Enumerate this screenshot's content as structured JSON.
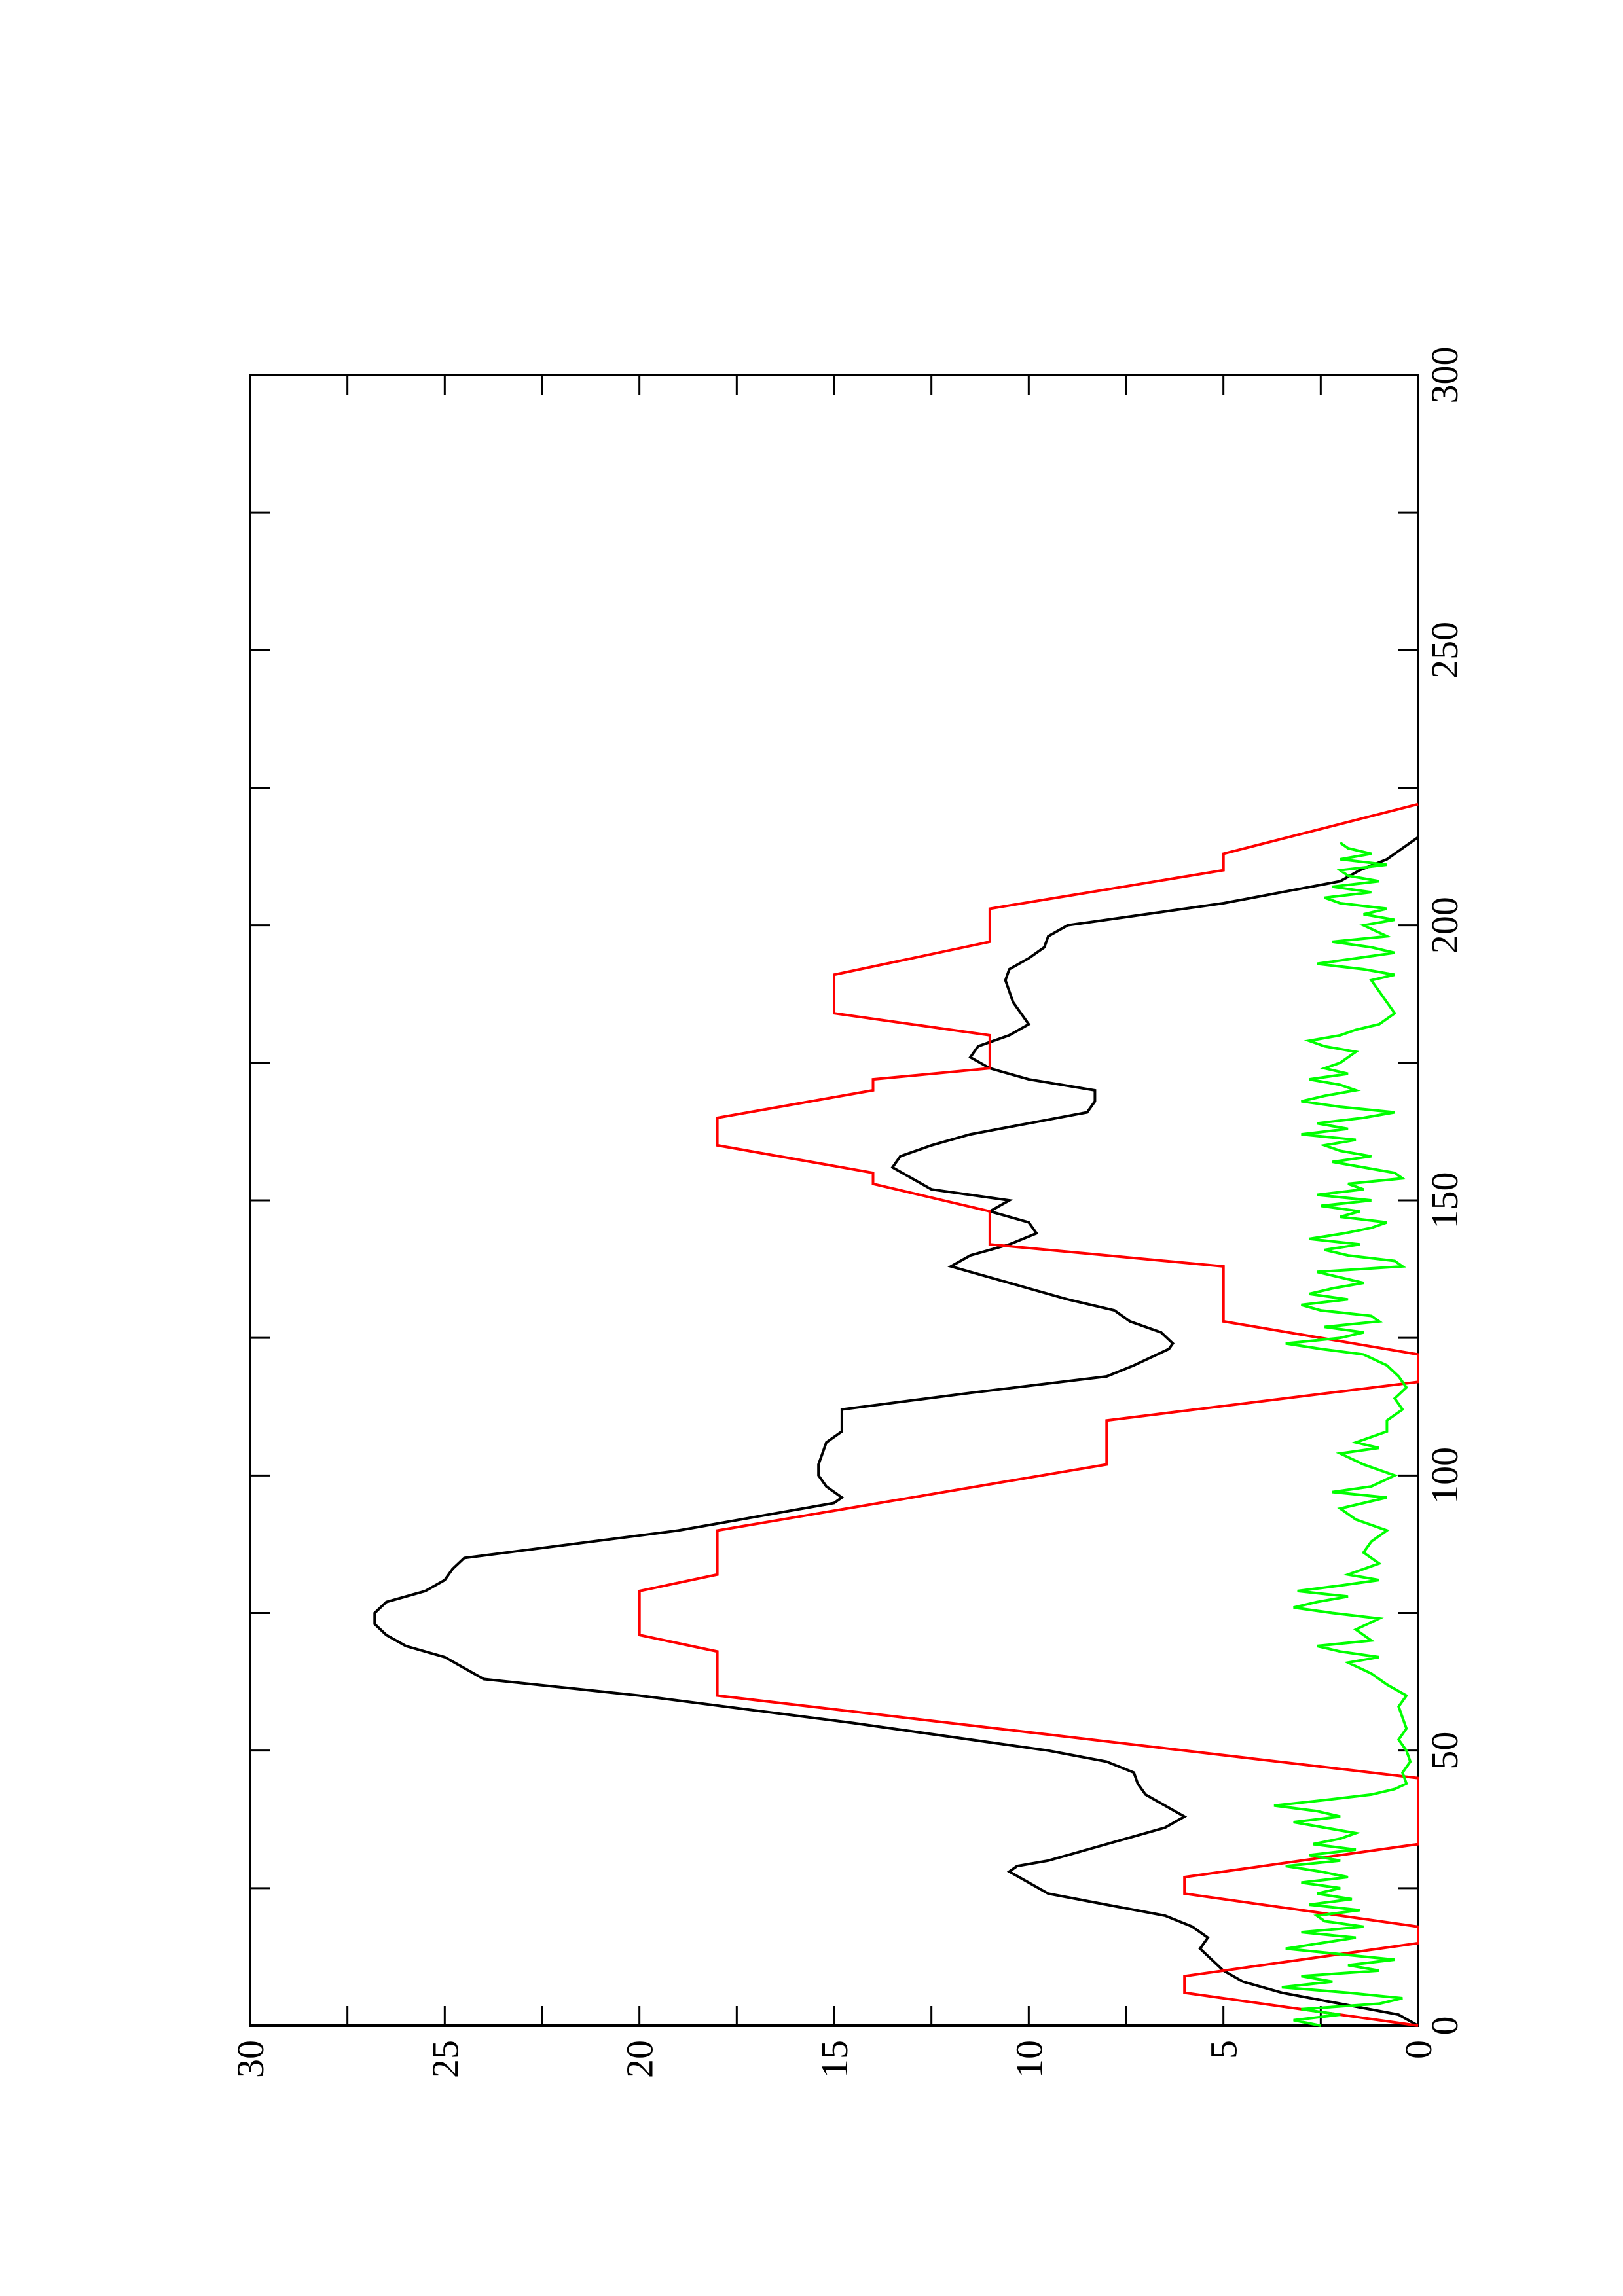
{
  "chart_data": {
    "type": "line",
    "orientation": "rotated 90 degrees counter-clockwise (x axis runs bottom to top, y axis runs right to left)",
    "xlim": [
      0,
      300
    ],
    "ylim": [
      0,
      30
    ],
    "x_ticks": [
      "0",
      "50",
      "100",
      "150",
      "200",
      "250",
      "300"
    ],
    "y_ticks": [
      "0",
      "5",
      "10",
      "15",
      "20",
      "25",
      "30"
    ],
    "title": "",
    "xlabel": "",
    "ylabel": "",
    "grid": false,
    "legend": "none",
    "series": [
      {
        "color": "#000000",
        "points": [
          [
            0,
            0
          ],
          [
            2,
            0.5
          ],
          [
            4,
            2
          ],
          [
            6,
            3.5
          ],
          [
            8,
            4.5
          ],
          [
            10,
            5
          ],
          [
            12,
            5.3
          ],
          [
            14,
            5.6
          ],
          [
            16,
            5.4
          ],
          [
            18,
            5.8
          ],
          [
            20,
            6.5
          ],
          [
            22,
            8
          ],
          [
            24,
            9.5
          ],
          [
            26,
            10
          ],
          [
            28,
            10.5
          ],
          [
            29,
            10.3
          ],
          [
            30,
            9.5
          ],
          [
            32,
            8.5
          ],
          [
            34,
            7.5
          ],
          [
            36,
            6.5
          ],
          [
            38,
            6
          ],
          [
            40,
            6.5
          ],
          [
            42,
            7
          ],
          [
            44,
            7.2
          ],
          [
            46,
            7.3
          ],
          [
            48,
            8
          ],
          [
            50,
            9.5
          ],
          [
            55,
            14.5
          ],
          [
            60,
            20
          ],
          [
            63,
            24
          ],
          [
            65,
            24.5
          ],
          [
            67,
            25
          ],
          [
            69,
            26
          ],
          [
            71,
            26.5
          ],
          [
            73,
            26.8
          ],
          [
            75,
            26.8
          ],
          [
            77,
            26.5
          ],
          [
            79,
            25.5
          ],
          [
            81,
            25
          ],
          [
            83,
            24.8
          ],
          [
            85,
            24.5
          ],
          [
            90,
            19
          ],
          [
            95,
            15
          ],
          [
            96,
            14.8
          ],
          [
            98,
            15.2
          ],
          [
            100,
            15.4
          ],
          [
            102,
            15.4
          ],
          [
            104,
            15.3
          ],
          [
            106,
            15.2
          ],
          [
            108,
            14.8
          ],
          [
            110,
            14.8
          ],
          [
            112,
            14.8
          ],
          [
            115,
            11.5
          ],
          [
            118,
            8
          ],
          [
            120,
            7.3
          ],
          [
            121,
            7
          ],
          [
            122,
            6.7
          ],
          [
            123,
            6.4
          ],
          [
            124,
            6.3
          ],
          [
            126,
            6.6
          ],
          [
            128,
            7.4
          ],
          [
            130,
            7.8
          ],
          [
            132,
            9
          ],
          [
            134,
            10
          ],
          [
            136,
            11
          ],
          [
            138,
            12
          ],
          [
            140,
            11.5
          ],
          [
            142,
            10.5
          ],
          [
            144,
            9.8
          ],
          [
            146,
            10
          ],
          [
            148,
            11
          ],
          [
            150,
            10.5
          ],
          [
            152,
            12.5
          ],
          [
            154,
            13
          ],
          [
            156,
            13.5
          ],
          [
            158,
            13.3
          ],
          [
            160,
            12.5
          ],
          [
            162,
            11.5
          ],
          [
            164,
            10
          ],
          [
            166,
            8.5
          ],
          [
            168,
            8.3
          ],
          [
            170,
            8.3
          ],
          [
            172,
            10
          ],
          [
            174,
            11
          ],
          [
            176,
            11.5
          ],
          [
            178,
            11.3
          ],
          [
            180,
            10.5
          ],
          [
            182,
            10
          ],
          [
            184,
            10.2
          ],
          [
            186,
            10.4
          ],
          [
            188,
            10.5
          ],
          [
            190,
            10.6
          ],
          [
            192,
            10.5
          ],
          [
            194,
            10
          ],
          [
            196,
            9.6
          ],
          [
            198,
            9.5
          ],
          [
            200,
            9
          ],
          [
            202,
            7
          ],
          [
            204,
            5
          ],
          [
            206,
            3.5
          ],
          [
            208,
            2
          ],
          [
            210,
            1.5
          ],
          [
            212,
            0.8
          ],
          [
            214,
            0.4
          ],
          [
            216,
            0
          ]
        ]
      },
      {
        "color": "#ff0000",
        "points": [
          [
            0,
            0
          ],
          [
            6,
            6
          ],
          [
            9,
            6
          ],
          [
            15,
            0
          ],
          [
            18,
            0
          ],
          [
            24,
            6
          ],
          [
            27,
            6
          ],
          [
            33,
            0
          ],
          [
            45,
            0
          ],
          [
            60,
            18
          ],
          [
            68,
            18
          ],
          [
            71,
            20
          ],
          [
            79,
            20
          ],
          [
            82,
            18
          ],
          [
            90,
            18
          ],
          [
            102,
            8
          ],
          [
            110,
            8
          ],
          [
            117,
            0
          ],
          [
            122,
            0
          ],
          [
            128,
            5
          ],
          [
            138,
            5
          ],
          [
            142,
            11
          ],
          [
            148,
            11
          ],
          [
            153,
            14
          ],
          [
            155,
            14
          ],
          [
            160,
            18
          ],
          [
            165,
            18
          ],
          [
            170,
            14
          ],
          [
            172,
            14
          ],
          [
            174,
            11
          ],
          [
            180,
            11
          ],
          [
            184,
            15
          ],
          [
            191,
            15
          ],
          [
            197,
            11
          ],
          [
            203,
            11
          ],
          [
            210,
            5
          ],
          [
            213,
            5
          ],
          [
            222,
            0
          ]
        ]
      },
      {
        "color": "#00ff00",
        "points": [
          [
            0,
            2.5
          ],
          [
            1,
            3.2
          ],
          [
            2,
            2.0
          ],
          [
            3,
            3.0
          ],
          [
            4,
            1.0
          ],
          [
            5,
            0.4
          ],
          [
            6,
            1.8
          ],
          [
            7,
            3.5
          ],
          [
            8,
            2.2
          ],
          [
            9,
            3.0
          ],
          [
            10,
            1.0
          ],
          [
            11,
            1.8
          ],
          [
            12,
            0.6
          ],
          [
            13,
            2.0
          ],
          [
            14,
            3.4
          ],
          [
            15,
            2.5
          ],
          [
            16,
            1.6
          ],
          [
            17,
            3.0
          ],
          [
            18,
            1.4
          ],
          [
            19,
            2.4
          ],
          [
            20,
            2.6
          ],
          [
            21,
            1.5
          ],
          [
            22,
            2.8
          ],
          [
            23,
            1.7
          ],
          [
            24,
            2.6
          ],
          [
            25,
            2.0
          ],
          [
            26,
            3.0
          ],
          [
            27,
            1.8
          ],
          [
            28,
            2.5
          ],
          [
            29,
            3.4
          ],
          [
            30,
            2.0
          ],
          [
            31,
            2.8
          ],
          [
            32,
            1.6
          ],
          [
            33,
            2.7
          ],
          [
            34,
            2.0
          ],
          [
            35,
            1.6
          ],
          [
            36,
            2.4
          ],
          [
            37,
            3.2
          ],
          [
            38,
            2.0
          ],
          [
            39,
            2.6
          ],
          [
            40,
            3.7
          ],
          [
            41,
            2.4
          ],
          [
            42,
            1.2
          ],
          [
            43,
            0.6
          ],
          [
            44,
            0.3
          ],
          [
            46,
            0.4
          ],
          [
            48,
            0.2
          ],
          [
            50,
            0.3
          ],
          [
            52,
            0.5
          ],
          [
            54,
            0.3
          ],
          [
            56,
            0.4
          ],
          [
            58,
            0.5
          ],
          [
            60,
            0.3
          ],
          [
            62,
            0.8
          ],
          [
            64,
            1.2
          ],
          [
            66,
            1.8
          ],
          [
            67,
            1.0
          ],
          [
            68,
            2.0
          ],
          [
            69,
            2.6
          ],
          [
            70,
            1.2
          ],
          [
            72,
            1.6
          ],
          [
            74,
            1.0
          ],
          [
            75,
            2.2
          ],
          [
            76,
            3.2
          ],
          [
            77,
            2.6
          ],
          [
            78,
            1.8
          ],
          [
            79,
            3.1
          ],
          [
            80,
            2.0
          ],
          [
            81,
            1.0
          ],
          [
            82,
            1.8
          ],
          [
            84,
            1.0
          ],
          [
            86,
            1.4
          ],
          [
            88,
            1.2
          ],
          [
            90,
            0.8
          ],
          [
            92,
            1.6
          ],
          [
            94,
            2.0
          ],
          [
            96,
            0.8
          ],
          [
            97,
            2.2
          ],
          [
            98,
            1.2
          ],
          [
            100,
            0.6
          ],
          [
            102,
            1.4
          ],
          [
            104,
            2.0
          ],
          [
            105,
            1.0
          ],
          [
            106,
            1.6
          ],
          [
            108,
            0.8
          ],
          [
            110,
            0.8
          ],
          [
            112,
            0.4
          ],
          [
            114,
            0.6
          ],
          [
            116,
            0.3
          ],
          [
            118,
            0.5
          ],
          [
            120,
            0.8
          ],
          [
            122,
            1.4
          ],
          [
            123,
            2.5
          ],
          [
            124,
            3.4
          ],
          [
            125,
            2.0
          ],
          [
            126,
            1.4
          ],
          [
            127,
            2.4
          ],
          [
            128,
            1.0
          ],
          [
            129,
            1.2
          ],
          [
            130,
            2.5
          ],
          [
            131,
            3.0
          ],
          [
            132,
            1.8
          ],
          [
            133,
            2.8
          ],
          [
            134,
            2.2
          ],
          [
            135,
            1.4
          ],
          [
            136,
            2.0
          ],
          [
            137,
            2.6
          ],
          [
            138,
            0.4
          ],
          [
            139,
            0.6
          ],
          [
            140,
            1.8
          ],
          [
            141,
            2.4
          ],
          [
            142,
            1.5
          ],
          [
            143,
            2.8
          ],
          [
            144,
            1.9
          ],
          [
            145,
            1.2
          ],
          [
            146,
            0.8
          ],
          [
            147,
            2.0
          ],
          [
            148,
            1.5
          ],
          [
            149,
            2.5
          ],
          [
            150,
            1.2
          ],
          [
            151,
            2.6
          ],
          [
            152,
            1.4
          ],
          [
            153,
            1.8
          ],
          [
            154,
            0.4
          ],
          [
            155,
            0.6
          ],
          [
            156,
            1.4
          ],
          [
            157,
            2.2
          ],
          [
            158,
            1.2
          ],
          [
            159,
            2.0
          ],
          [
            160,
            2.4
          ],
          [
            161,
            1.6
          ],
          [
            162,
            3.0
          ],
          [
            163,
            1.8
          ],
          [
            164,
            2.6
          ],
          [
            165,
            1.4
          ],
          [
            166,
            0.6
          ],
          [
            167,
            2.0
          ],
          [
            168,
            3.0
          ],
          [
            169,
            2.4
          ],
          [
            170,
            1.6
          ],
          [
            171,
            2.0
          ],
          [
            172,
            2.8
          ],
          [
            173,
            1.8
          ],
          [
            174,
            2.4
          ],
          [
            175,
            2.0
          ],
          [
            176,
            1.8
          ],
          [
            177,
            1.6
          ],
          [
            178,
            2.4
          ],
          [
            179,
            2.8
          ],
          [
            180,
            2.0
          ],
          [
            181,
            1.6
          ],
          [
            182,
            1.0
          ],
          [
            184,
            0.6
          ],
          [
            186,
            0.8
          ],
          [
            188,
            1.0
          ],
          [
            190,
            1.2
          ],
          [
            191,
            0.6
          ],
          [
            192,
            1.4
          ],
          [
            193,
            2.6
          ],
          [
            194,
            1.6
          ],
          [
            195,
            0.6
          ],
          [
            196,
            1.2
          ],
          [
            197,
            2.2
          ],
          [
            198,
            0.8
          ],
          [
            200,
            1.4
          ],
          [
            201,
            0.6
          ],
          [
            202,
            1.4
          ],
          [
            203,
            0.8
          ],
          [
            204,
            2.0
          ],
          [
            205,
            2.4
          ],
          [
            206,
            1.2
          ],
          [
            207,
            2.2
          ],
          [
            208,
            1.0
          ],
          [
            209,
            1.8
          ],
          [
            210,
            2.0
          ],
          [
            211,
            0.8
          ],
          [
            212,
            2.0
          ],
          [
            213,
            1.2
          ],
          [
            214,
            1.8
          ],
          [
            215,
            2.0
          ]
        ]
      }
    ]
  }
}
